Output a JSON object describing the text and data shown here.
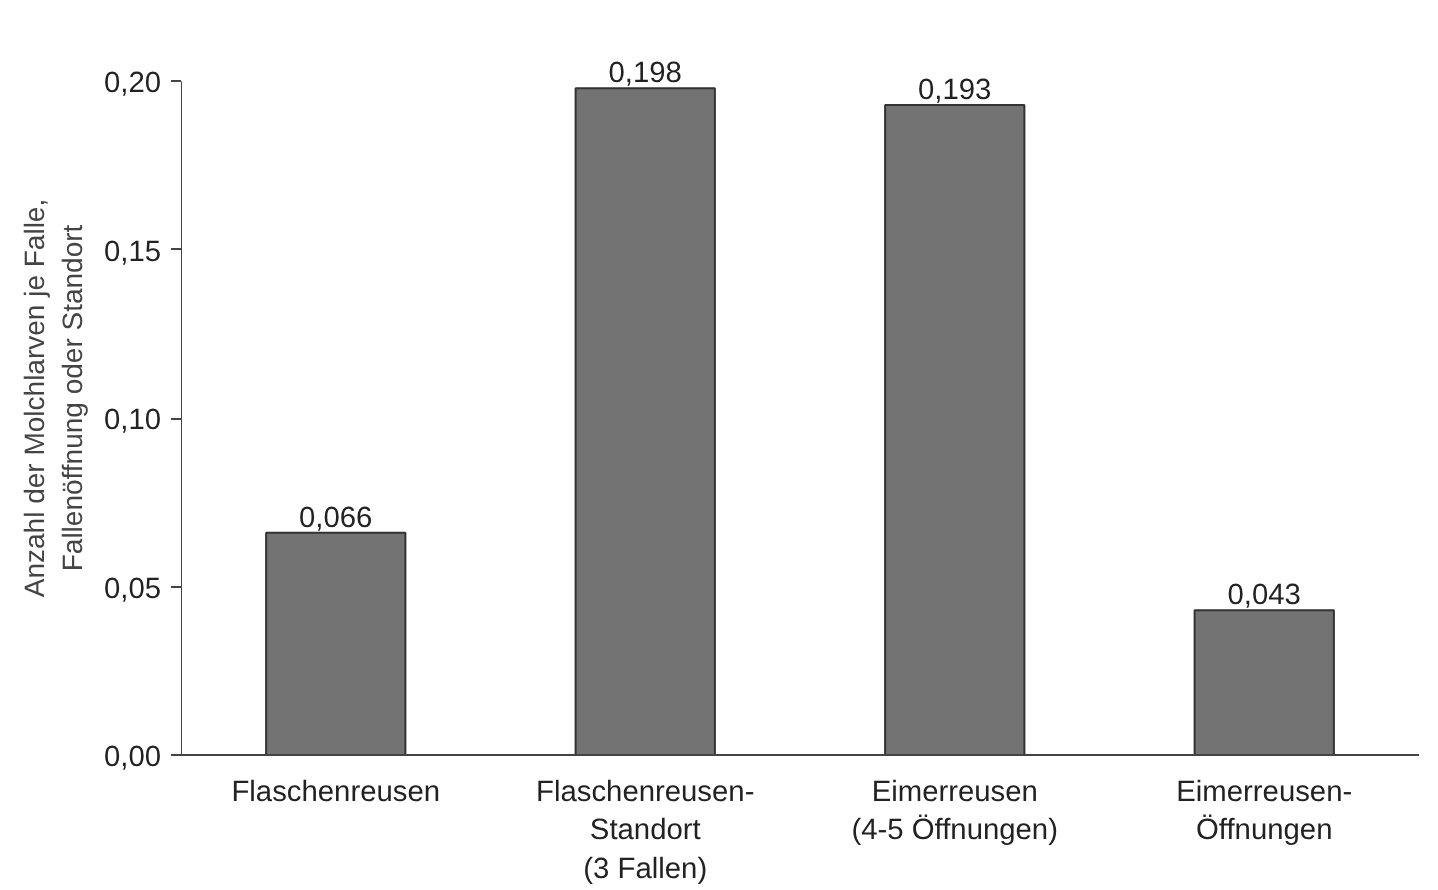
{
  "chart_data": {
    "type": "bar",
    "categories": [
      "Flaschenreusen",
      "Flaschenreusen-\nStandort\n(3 Fallen)",
      "Eimerreusen\n(4-5 Öffnungen)",
      "Eimerreusen-\nÖffnungen"
    ],
    "values": [
      0.066,
      0.198,
      0.193,
      0.043
    ],
    "value_labels": [
      "0,066",
      "0,198",
      "0,193",
      "0,043"
    ],
    "color": "#737373",
    "ylabel": "Anzahl der Molchlarven je Falle,\nFallenöffnung oder Standort",
    "ylim": [
      0,
      0.2
    ],
    "yticks": [
      {
        "value": 0,
        "label": "0,00"
      },
      {
        "value": 0.05,
        "label": "0,05"
      },
      {
        "value": 0.1,
        "label": "0,10"
      },
      {
        "value": 0.15,
        "label": "0,15"
      },
      {
        "value": 0.2,
        "label": "0,20"
      }
    ],
    "grid": false,
    "legend": false
  }
}
